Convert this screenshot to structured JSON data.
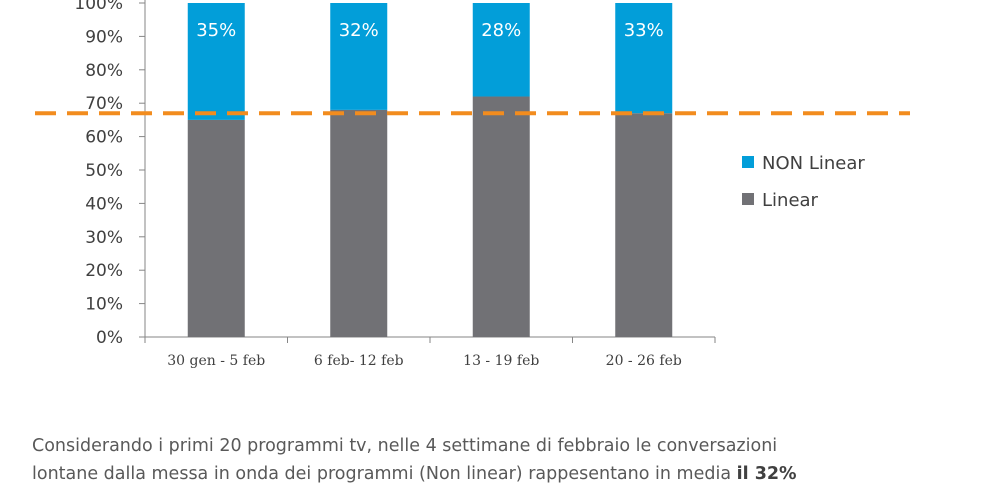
{
  "chart_data": {
    "type": "bar",
    "stacked": true,
    "percent_stacked": true,
    "categories": [
      "30 gen - 5 feb",
      "6 feb- 12 feb",
      "13 - 19 feb",
      "20 - 26 feb"
    ],
    "series": [
      {
        "name": "Linear",
        "values": [
          65,
          68,
          72,
          67
        ],
        "color": "#717175"
      },
      {
        "name": "NON Linear",
        "values": [
          35,
          32,
          28,
          33
        ],
        "color": "#029ED9"
      }
    ],
    "data_labels": [
      "35%",
      "32%",
      "28%",
      "33%"
    ],
    "y_ticks": [
      "0%",
      "10%",
      "20%",
      "30%",
      "40%",
      "50%",
      "60%",
      "70%",
      "80%",
      "90%",
      "100%"
    ],
    "ylim": [
      0,
      100
    ],
    "reference_line": {
      "value": 67,
      "style": "dashed",
      "color": "#F28C1E"
    },
    "legend": {
      "position": "right",
      "entries": [
        "NON Linear",
        "Linear"
      ]
    },
    "grid": false
  },
  "caption": {
    "line1": "Considerando i primi 20 programmi tv, nelle  4 settimane di febbraio  le conversazioni",
    "line2_prefix": "lontane dalla messa in onda dei programmi (Non linear) rappesentano in media ",
    "line2_bold": "il 32%"
  }
}
